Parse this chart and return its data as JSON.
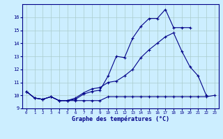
{
  "xlabel": "Graphe des températures (°C)",
  "background_color": "#cceeff",
  "grid_color": "#aacccc",
  "line_color": "#000088",
  "ylim": [
    9,
    17
  ],
  "xlim": [
    -0.5,
    23.5
  ],
  "yticks": [
    9,
    10,
    11,
    12,
    13,
    14,
    15,
    16
  ],
  "xticks": [
    0,
    1,
    2,
    3,
    4,
    5,
    6,
    7,
    8,
    9,
    10,
    11,
    12,
    13,
    14,
    15,
    16,
    17,
    18,
    19,
    20,
    21,
    22,
    23
  ],
  "line1_x": [
    0,
    1,
    2,
    3,
    4,
    5,
    6,
    7,
    8,
    9,
    10,
    11,
    12,
    13,
    14,
    15,
    16,
    17,
    18,
    19,
    20
  ],
  "line1_y": [
    10.3,
    9.8,
    9.7,
    9.9,
    9.6,
    9.6,
    9.7,
    10.1,
    10.3,
    10.4,
    11.5,
    13.0,
    12.9,
    14.4,
    15.3,
    15.9,
    15.9,
    16.6,
    15.2,
    15.2,
    15.2
  ],
  "line2_x": [
    0,
    1,
    2,
    3,
    4,
    5,
    6,
    7,
    8,
    9,
    10,
    11,
    12,
    13,
    14,
    15,
    16,
    17,
    18,
    19,
    20,
    21,
    22
  ],
  "line2_y": [
    10.3,
    9.8,
    9.7,
    9.9,
    9.6,
    9.6,
    9.8,
    10.2,
    10.5,
    10.6,
    11.0,
    11.1,
    11.5,
    12.0,
    12.9,
    13.5,
    14.0,
    14.5,
    14.8,
    13.4,
    12.2,
    11.5,
    10.0
  ],
  "line3_x": [
    0,
    1,
    2,
    3,
    4,
    5,
    6,
    7,
    8,
    9,
    10,
    11,
    12,
    13,
    14,
    15,
    16,
    17,
    18,
    19,
    20,
    21,
    22,
    23
  ],
  "line3_y": [
    10.3,
    9.8,
    9.7,
    9.9,
    9.6,
    9.6,
    9.6,
    9.6,
    9.6,
    9.6,
    9.9,
    9.9,
    9.9,
    9.9,
    9.9,
    9.9,
    9.9,
    9.9,
    9.9,
    9.9,
    9.9,
    9.9,
    9.9,
    10.0
  ]
}
